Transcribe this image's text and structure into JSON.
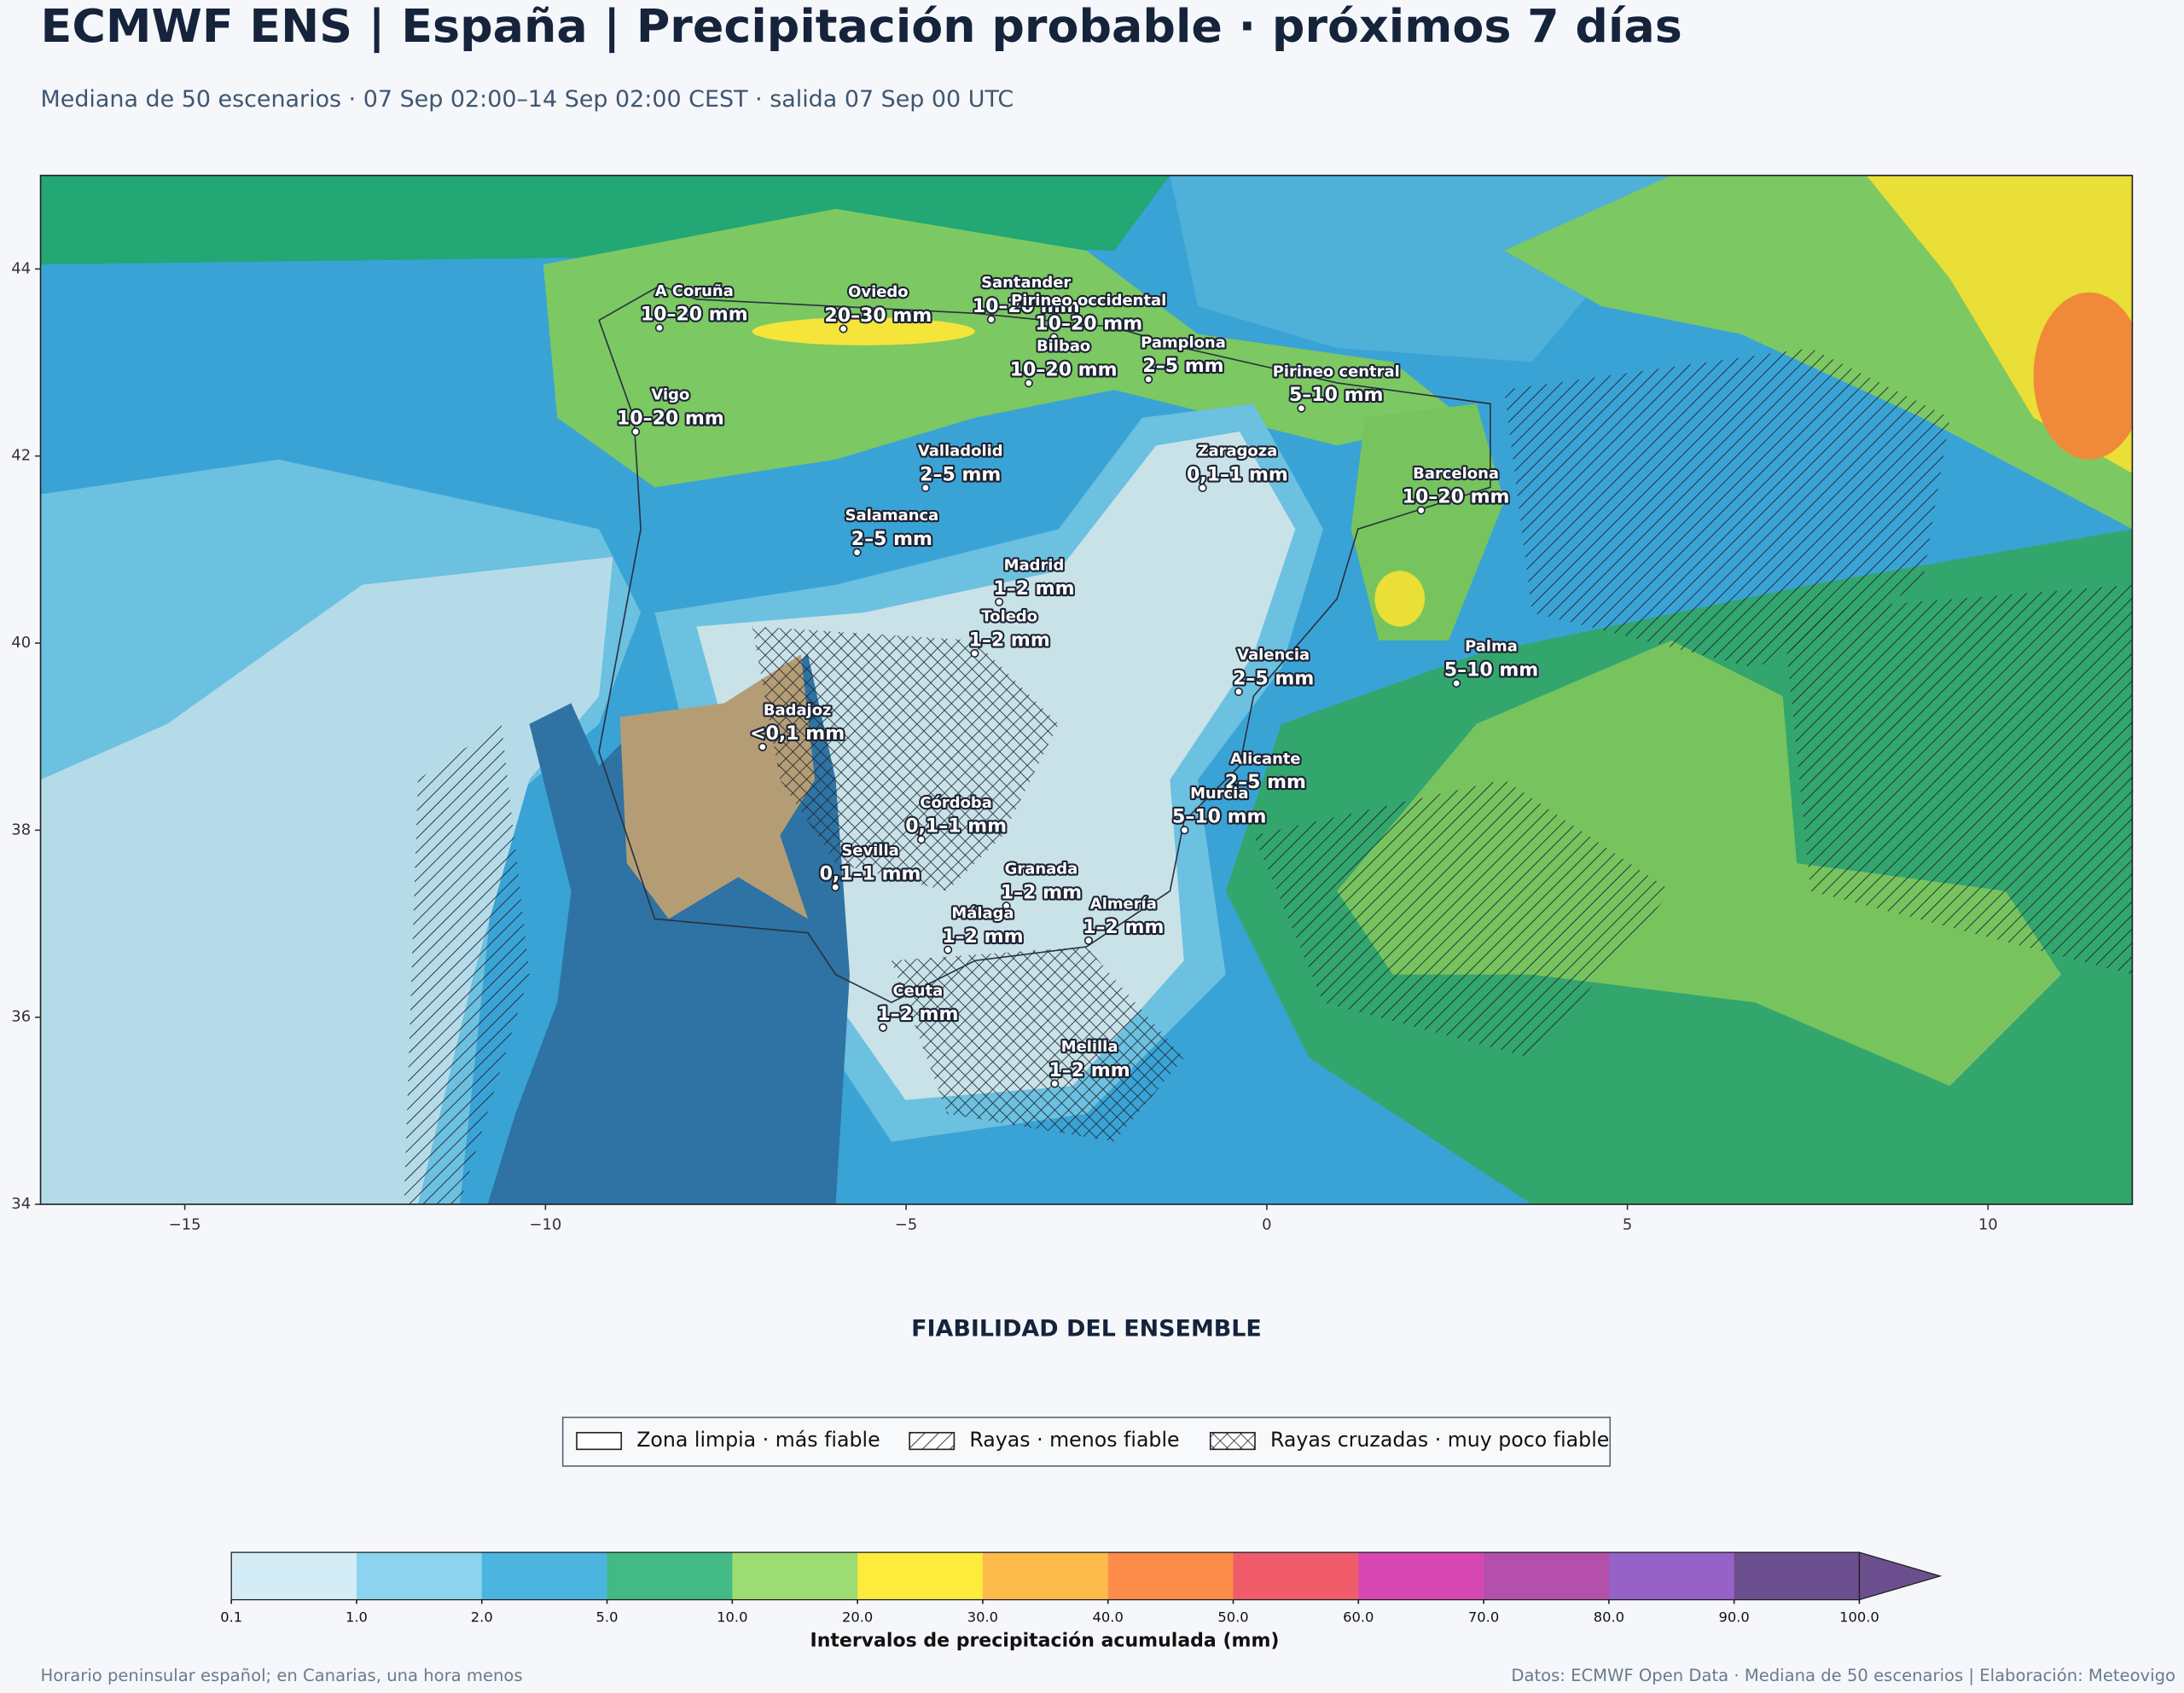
{
  "header": {
    "title": "ECMWF ENS | España | Precipitación probable · próximos 7 días",
    "subtitle": "Mediana de 50 escenarios · 07 Sep 02:00–14 Sep 02:00 CEST · salida 07 Sep 00 UTC"
  },
  "map": {
    "xlim": [
      -17,
      12
    ],
    "ylim": [
      34,
      45
    ],
    "xticks": [
      {
        "value": -15,
        "label": "−15"
      },
      {
        "value": -10,
        "label": "−10"
      },
      {
        "value": -5,
        "label": "−5"
      },
      0,
      5,
      10
    ],
    "yticks": [
      34,
      36,
      38,
      40,
      42,
      44
    ],
    "cities": [
      {
        "name": "A Coruña",
        "lon": -8.42,
        "lat": 43.37,
        "label": "10–20 mm"
      },
      {
        "name": "Oviedo",
        "lon": -5.87,
        "lat": 43.36,
        "label": "20–30 mm"
      },
      {
        "name": "Santander",
        "lon": -3.82,
        "lat": 43.46,
        "label": "10–20 mm"
      },
      {
        "name": "Pirineo occidental",
        "lon": -2.95,
        "lat": 43.27,
        "label": "10–20 mm"
      },
      {
        "name": "Pamplona",
        "lon": -1.64,
        "lat": 42.82,
        "label": "2–5 mm"
      },
      {
        "name": "Pirineo central",
        "lon": 0.48,
        "lat": 42.51,
        "label": "5–10 mm"
      },
      {
        "name": "Bilbao",
        "lon": -3.3,
        "lat": 42.78,
        "label": "10–20 mm"
      },
      {
        "name": "Vigo",
        "lon": -8.75,
        "lat": 42.26,
        "label": "10–20 mm"
      },
      {
        "name": "Valladolid",
        "lon": -4.73,
        "lat": 41.66,
        "label": "2–5 mm"
      },
      {
        "name": "Zaragoza",
        "lon": -0.89,
        "lat": 41.66,
        "label": "0,1–1 mm"
      },
      {
        "name": "Barcelona",
        "lon": 2.14,
        "lat": 41.42,
        "label": "10–20 mm"
      },
      {
        "name": "Salamanca",
        "lon": -5.68,
        "lat": 40.97,
        "label": "2–5 mm"
      },
      {
        "name": "Madrid",
        "lon": -3.71,
        "lat": 40.44,
        "label": "1–2 mm"
      },
      {
        "name": "Valencia",
        "lon": -0.39,
        "lat": 39.48,
        "label": "2–5 mm"
      },
      {
        "name": "Toledo",
        "lon": -4.05,
        "lat": 39.89,
        "label": "1–2 mm"
      },
      {
        "name": "Badajoz",
        "lon": -6.99,
        "lat": 38.89,
        "label": "<0,1 mm"
      },
      {
        "name": "Palma",
        "lon": 2.63,
        "lat": 39.57,
        "label": "5–10 mm"
      },
      {
        "name": "Córdoba",
        "lon": -4.79,
        "lat": 37.9,
        "label": "0,1–1 mm"
      },
      {
        "name": "Alicante",
        "lon": -0.5,
        "lat": 38.37,
        "label": "2–5 mm"
      },
      {
        "name": "Murcia",
        "lon": -1.14,
        "lat": 38.0,
        "label": "5–10 mm"
      },
      {
        "name": "Granada",
        "lon": -3.61,
        "lat": 37.19,
        "label": "1–2 mm"
      },
      {
        "name": "Sevilla",
        "lon": -5.98,
        "lat": 37.39,
        "label": "0,1–1 mm"
      },
      {
        "name": "Almería",
        "lon": -2.47,
        "lat": 36.82,
        "label": "1–2 mm"
      },
      {
        "name": "Málaga",
        "lon": -4.42,
        "lat": 36.72,
        "label": "1–2 mm"
      },
      {
        "name": "Ceuta",
        "lon": -5.32,
        "lat": 35.89,
        "label": "1–2 mm"
      },
      {
        "name": "Melilla",
        "lon": -2.94,
        "lat": 35.29,
        "label": "1–2 mm"
      }
    ]
  },
  "legend": {
    "title": "FIABILIDAD DEL ENSEMBLE",
    "items": [
      {
        "label": "Zona limpia · más fiable",
        "hatch": "none"
      },
      {
        "label": "Rayas · menos fiable",
        "hatch": "diag"
      },
      {
        "label": "Rayas cruzadas · muy poco fiable",
        "hatch": "cross"
      }
    ]
  },
  "colorbar": {
    "label": "Intervalos de precipitación acumulada (mm)",
    "ticks": [
      0.1,
      {
        "value": 1,
        "label": "1.0"
      },
      {
        "value": 2,
        "label": "2.0"
      },
      {
        "value": 5,
        "label": "5.0"
      },
      {
        "value": 10,
        "label": "10.0"
      },
      {
        "value": 20,
        "label": "20.0"
      },
      {
        "value": 30,
        "label": "30.0"
      },
      {
        "value": 40,
        "label": "40.0"
      },
      {
        "value": 50,
        "label": "50.0"
      },
      {
        "value": 60,
        "label": "60.0"
      },
      {
        "value": 70,
        "label": "70.0"
      },
      {
        "value": 80,
        "label": "80.0"
      },
      {
        "value": 90,
        "label": "90.0"
      },
      {
        "value": 100,
        "label": "100.0"
      }
    ],
    "colors": [
      "#d4ecf5",
      "#8bd3ee",
      "#4bb5e0",
      "#43b985",
      "#9ddc72",
      "#fdec3c",
      "#fdbb4b",
      "#fd8b4a",
      "#f05c6a",
      "#d848b5",
      "#b44fab",
      "#9662c7",
      "#6c4f8f"
    ]
  },
  "footer": {
    "left": "Horario peninsular español; en Canarias, una hora menos",
    "right": "Datos: ECMWF Open Data · Mediana de 50 escenarios | Elaboración: Meteovigo"
  }
}
